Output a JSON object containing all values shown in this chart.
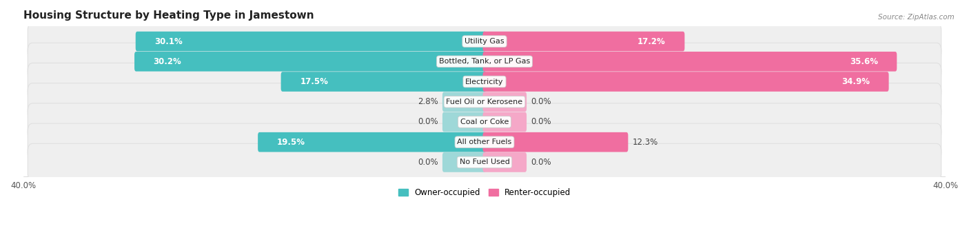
{
  "title": "Housing Structure by Heating Type in Jamestown",
  "source": "Source: ZipAtlas.com",
  "categories": [
    "Utility Gas",
    "Bottled, Tank, or LP Gas",
    "Electricity",
    "Fuel Oil or Kerosene",
    "Coal or Coke",
    "All other Fuels",
    "No Fuel Used"
  ],
  "owner_values": [
    30.1,
    30.2,
    17.5,
    2.8,
    0.0,
    19.5,
    0.0
  ],
  "renter_values": [
    17.2,
    35.6,
    34.9,
    0.0,
    0.0,
    12.3,
    0.0
  ],
  "owner_color": "#45BFBF",
  "owner_color_light": "#9ED8D8",
  "renter_color": "#F06EA0",
  "renter_color_light": "#F5A8C8",
  "row_bg_color": "#EFEFEF",
  "row_bg_edge": "#E0E0E0",
  "axis_max": 40.0,
  "min_bar_width": 3.5,
  "label_fontsize": 8.5,
  "title_fontsize": 11,
  "legend_owner": "Owner-occupied",
  "legend_renter": "Renter-occupied"
}
